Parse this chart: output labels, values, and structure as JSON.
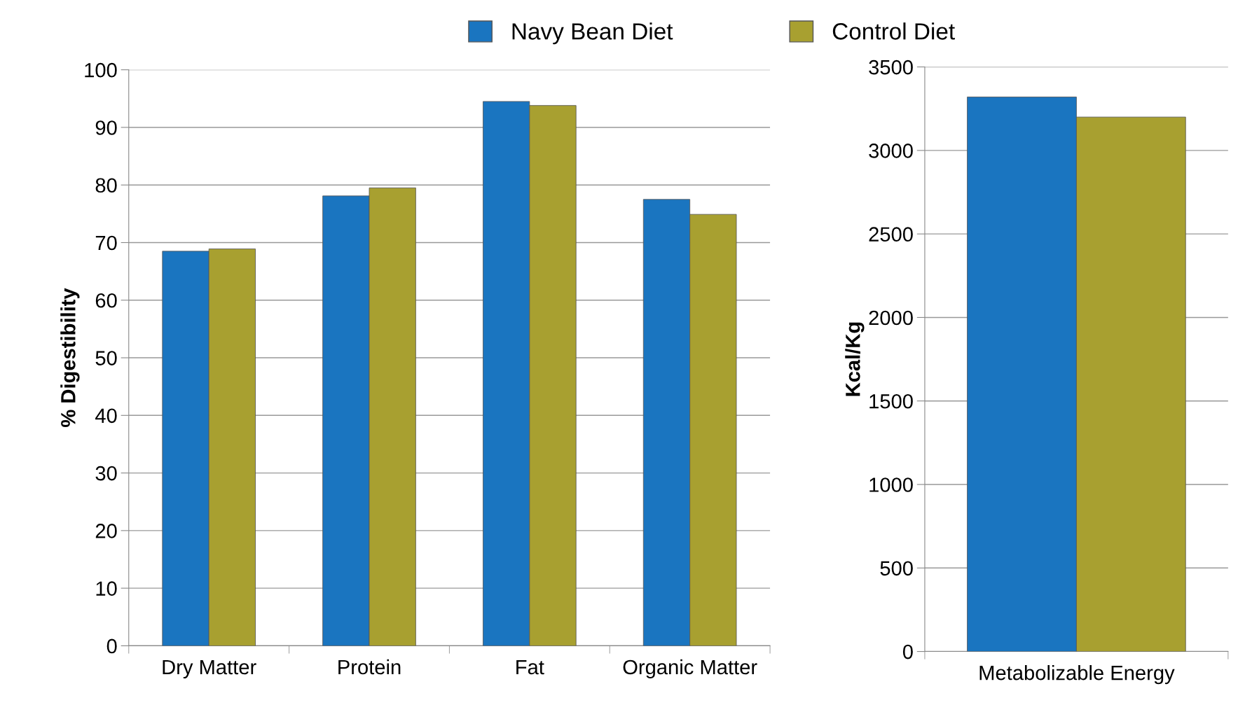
{
  "chart_data": [
    {
      "type": "bar",
      "ylabel": "% Digestibility",
      "categories": [
        "Dry Matter",
        "Protein",
        "Fat",
        "Organic Matter"
      ],
      "series": [
        {
          "name": "Navy Bean Diet",
          "color": "#1a75c0",
          "values": [
            68.5,
            78.1,
            94.5,
            77.5
          ]
        },
        {
          "name": "Control Diet",
          "color": "#a8a030",
          "values": [
            68.9,
            79.5,
            93.8,
            74.9
          ]
        }
      ],
      "ylim": [
        0,
        100
      ],
      "yticks": [
        0,
        10,
        20,
        30,
        40,
        50,
        60,
        70,
        80,
        90,
        100
      ],
      "grid": "y",
      "legend": "top"
    },
    {
      "type": "bar",
      "ylabel": "Kcal/Kg",
      "categories": [
        "Metabolizable Energy"
      ],
      "series": [
        {
          "name": "Navy Bean Diet",
          "color": "#1a75c0",
          "values": [
            3320
          ]
        },
        {
          "name": "Control Diet",
          "color": "#a8a030",
          "values": [
            3200
          ]
        }
      ],
      "ylim": [
        0,
        3500
      ],
      "yticks": [
        0,
        500,
        1000,
        1500,
        2000,
        2500,
        3000,
        3500
      ],
      "grid": "y"
    }
  ]
}
